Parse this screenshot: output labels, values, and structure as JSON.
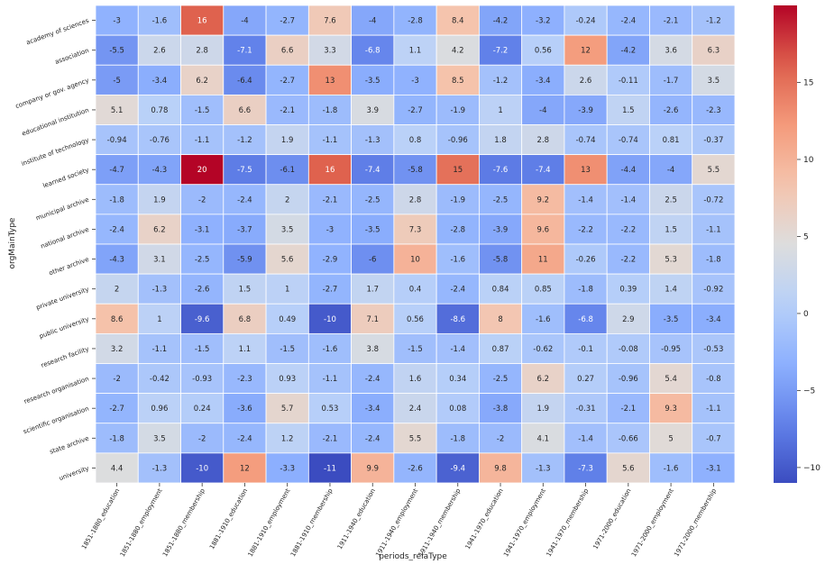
{
  "chart_data": {
    "type": "heatmap",
    "title": "",
    "xlabel": "periods_relaType",
    "ylabel": "orgMainType",
    "x_categories": [
      "1851-1880_education",
      "1851-1880_employment",
      "1851-1880_membership",
      "1881-1910_education",
      "1881-1910_employment",
      "1881-1910_membership",
      "1911-1940_education",
      "1911-1940_employment",
      "1911-1940_membership",
      "1941-1970_education",
      "1941-1970_employment",
      "1941-1970_membership",
      "1971-2000_education",
      "1971-2000_employment",
      "1971-2000_membership"
    ],
    "y_categories": [
      "academy of sciences",
      "association",
      "company or gov. agency",
      "educational institution",
      "institute of technology",
      "learned society",
      "municipal archive",
      "national archive",
      "other archive",
      "private university",
      "public university",
      "research facility",
      "research organisation",
      "scientific organisation",
      "state archive",
      "university"
    ],
    "values": [
      [
        -3,
        -1.6,
        16,
        -4,
        -2.7,
        7.6,
        -4,
        -2.8,
        8.4,
        -4.2,
        -3.2,
        -0.24,
        -2.4,
        -2.1,
        -1.2
      ],
      [
        -5.5,
        2.6,
        2.8,
        -7.1,
        6.6,
        3.3,
        -6.8,
        1.1,
        4.2,
        -7.2,
        0.56,
        12,
        -4.2,
        3.6,
        6.3
      ],
      [
        -5,
        -3.4,
        6.2,
        -6.4,
        -2.7,
        13,
        -3.5,
        -3,
        8.5,
        -1.2,
        -3.4,
        2.6,
        -0.11,
        -1.7,
        3.5
      ],
      [
        5.1,
        0.78,
        -1.5,
        6.6,
        -2.1,
        -1.8,
        3.9,
        -2.7,
        -1.9,
        1,
        -4,
        -3.9,
        1.5,
        -2.6,
        -2.3
      ],
      [
        -0.94,
        -0.76,
        -1.1,
        -1.2,
        1.9,
        -1.1,
        -1.3,
        0.8,
        -0.96,
        1.8,
        2.8,
        -0.74,
        -0.74,
        0.81,
        -0.37
      ],
      [
        -4.7,
        -4.3,
        20,
        -7.5,
        -6.1,
        16,
        -7.4,
        -5.8,
        15,
        -7.6,
        -7.4,
        13,
        -4.4,
        -4,
        5.5
      ],
      [
        -1.8,
        1.9,
        -2,
        -2.4,
        2,
        -2.1,
        -2.5,
        2.8,
        -1.9,
        -2.5,
        9.2,
        -1.4,
        -1.4,
        2.5,
        -0.72
      ],
      [
        -2.4,
        6.2,
        -3.1,
        -3.7,
        3.5,
        -3,
        -3.5,
        7.3,
        -2.8,
        -3.9,
        9.6,
        -2.2,
        -2.2,
        1.5,
        -1.1
      ],
      [
        -4.3,
        3.1,
        -2.5,
        -5.9,
        5.6,
        -2.9,
        -6,
        10,
        -1.6,
        -5.8,
        11,
        -0.26,
        -2.2,
        5.3,
        -1.8
      ],
      [
        2,
        -1.3,
        -2.6,
        1.5,
        1,
        -2.7,
        1.7,
        0.4,
        -2.4,
        0.84,
        0.85,
        -1.8,
        0.39,
        1.4,
        -0.92
      ],
      [
        8.6,
        1,
        -9.6,
        6.8,
        0.49,
        -10,
        7.1,
        0.56,
        -8.6,
        8,
        -1.6,
        -6.8,
        2.9,
        -3.5,
        -3.4
      ],
      [
        3.2,
        -1.1,
        -1.5,
        1.1,
        -1.5,
        -1.6,
        3.8,
        -1.5,
        -1.4,
        0.87,
        -0.62,
        -0.1,
        -0.08,
        -0.95,
        -0.53
      ],
      [
        -2,
        -0.42,
        -0.93,
        -2.3,
        0.93,
        -1.1,
        -2.4,
        1.6,
        0.34,
        -2.5,
        6.2,
        0.27,
        -0.96,
        5.4,
        -0.8
      ],
      [
        -2.7,
        0.96,
        0.24,
        -3.6,
        5.7,
        0.53,
        -3.4,
        2.4,
        0.08,
        -3.8,
        1.9,
        -0.31,
        -2.1,
        9.3,
        -1.1
      ],
      [
        -1.8,
        3.5,
        -2,
        -2.4,
        1.2,
        -2.1,
        -2.4,
        5.5,
        -1.8,
        -2,
        4.1,
        -1.4,
        -0.66,
        5,
        -0.7
      ],
      [
        4.4,
        -1.3,
        -10,
        12,
        -3.3,
        -11,
        9.9,
        -2.6,
        -9.4,
        9.8,
        -1.3,
        -7.3,
        5.6,
        -1.6,
        -3.1
      ]
    ],
    "colormap": "coolwarm",
    "vmin": -11,
    "vmax": 20,
    "colorbar_ticks": [
      -10,
      -5,
      0,
      5,
      10,
      15
    ],
    "annotated": true,
    "grid": false
  }
}
